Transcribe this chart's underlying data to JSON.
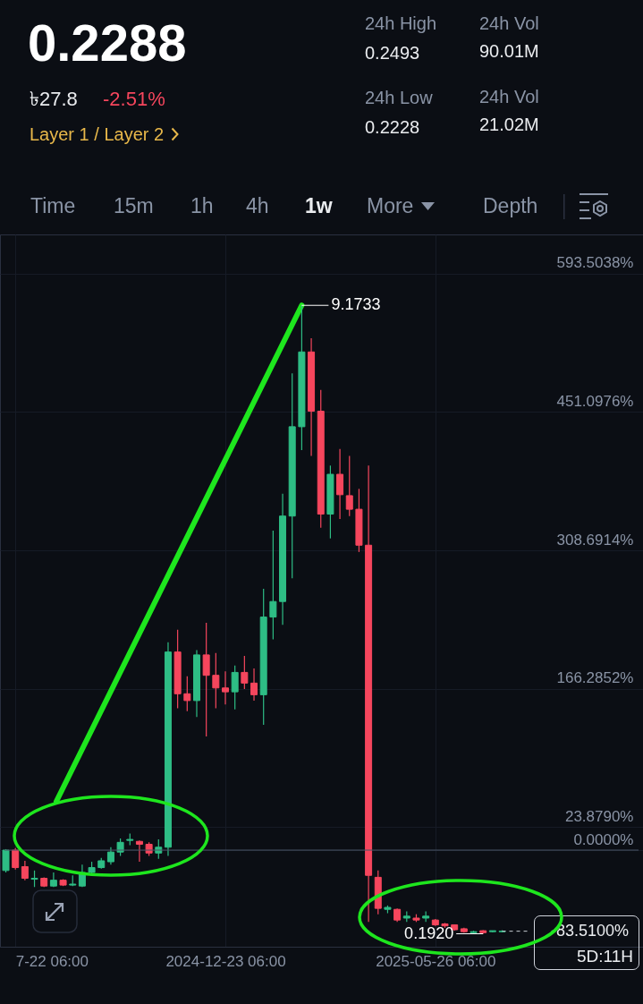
{
  "chart_data": {
    "type": "candlestick",
    "title": "0.2288",
    "x": [
      "2024-07-15",
      "2024-07-22",
      "2024-07-29",
      "2024-08-05",
      "2024-08-12",
      "2024-08-19",
      "2024-08-26",
      "2024-09-02",
      "2024-09-09",
      "2024-09-16",
      "2024-09-23",
      "2024-09-30",
      "2024-10-07",
      "2024-10-14",
      "2024-10-21",
      "2024-10-28",
      "2024-11-04",
      "2024-11-11",
      "2024-11-18",
      "2024-11-25",
      "2024-12-02",
      "2024-12-09",
      "2024-12-16",
      "2024-12-23",
      "2024-12-30",
      "2025-01-06",
      "2025-01-13",
      "2025-01-20",
      "2025-01-27",
      "2025-02-03",
      "2025-02-10",
      "2025-02-17",
      "2025-02-24",
      "2025-03-03",
      "2025-03-10",
      "2025-03-17",
      "2025-03-24",
      "2025-03-31",
      "2025-04-07",
      "2025-04-14",
      "2025-04-21",
      "2025-04-28",
      "2025-05-05",
      "2025-05-12",
      "2025-05-19",
      "2025-05-26",
      "2025-06-02",
      "2025-06-09",
      "2025-06-16",
      "2025-06-23",
      "2025-06-30",
      "2025-07-07",
      "2025-07-14"
    ],
    "ohlc": [
      [
        -21,
        1,
        -23,
        0
      ],
      [
        0,
        2,
        -20,
        -18
      ],
      [
        -17,
        -11,
        -31,
        -29
      ],
      [
        -30,
        -21,
        -38,
        -29
      ],
      [
        -29,
        -28,
        -38,
        -37
      ],
      [
        -37,
        -23,
        -38,
        -31
      ],
      [
        -31,
        -30,
        -37,
        -36
      ],
      [
        -36,
        -26,
        -37,
        -35
      ],
      [
        -37,
        -15,
        -38,
        -23
      ],
      [
        -23,
        -12,
        -25,
        -18
      ],
      [
        -18,
        -8,
        -19,
        -11
      ],
      [
        -12,
        3,
        -15,
        -2
      ],
      [
        -2,
        12,
        -6,
        8
      ],
      [
        10,
        17,
        5,
        11
      ],
      [
        9,
        10,
        -12,
        6
      ],
      [
        6,
        8,
        -6,
        -3
      ],
      [
        -3,
        11,
        -9,
        3
      ],
      [
        3,
        214,
        -6,
        204
      ],
      [
        204,
        227,
        146,
        161
      ],
      [
        161,
        179,
        143,
        154
      ],
      [
        154,
        206,
        137,
        201
      ],
      [
        201,
        234,
        117,
        180
      ],
      [
        180,
        203,
        146,
        167
      ],
      [
        167,
        184,
        150,
        163
      ],
      [
        163,
        190,
        145,
        183
      ],
      [
        183,
        200,
        166,
        172
      ],
      [
        172,
        187,
        154,
        160
      ],
      [
        160,
        269,
        129,
        240
      ],
      [
        240,
        329,
        217,
        256
      ],
      [
        256,
        367,
        232,
        344
      ],
      [
        344,
        491,
        280,
        436
      ],
      [
        436,
        561,
        412,
        513
      ],
      [
        513,
        527,
        406,
        452
      ],
      [
        452,
        474,
        332,
        346
      ],
      [
        346,
        396,
        321,
        387
      ],
      [
        387,
        413,
        341,
        366
      ],
      [
        365,
        406,
        344,
        351
      ],
      [
        351,
        372,
        307,
        314
      ],
      [
        314,
        396,
        -74,
        -26
      ],
      [
        -28,
        -21,
        -66,
        -60
      ],
      [
        -61,
        -57,
        -65,
        -59
      ],
      [
        -61,
        -60,
        -74,
        -72
      ],
      [
        -70,
        -63,
        -74,
        -68
      ],
      [
        -70,
        -66,
        -74,
        -72
      ],
      [
        -70,
        -63,
        -74,
        -68
      ],
      [
        -72,
        -71,
        -78,
        -77
      ],
      [
        -76,
        -75,
        -80,
        -78
      ],
      [
        -77,
        -77,
        -83,
        -82
      ],
      [
        -81,
        -80,
        -85,
        -84
      ],
      [
        -85,
        -83,
        -85.5,
        -84
      ],
      [
        -83,
        -82.5,
        -86.16,
        -85
      ],
      [
        -84,
        -82.8,
        -84.5,
        -83
      ],
      [
        -84,
        -82.5,
        -84.5,
        -83.51
      ]
    ],
    "colors": [
      "#2ebd85",
      "#f6465d",
      "#f6465d",
      "#2ebd85",
      "#f6465d",
      "#2ebd85",
      "#f6465d",
      "#2ebd85",
      "#2ebd85",
      "#2ebd85",
      "#2ebd85",
      "#2ebd85",
      "#2ebd85",
      "#2ebd85",
      "#f6465d",
      "#f6465d",
      "#2ebd85",
      "#2ebd85",
      "#f6465d",
      "#f6465d",
      "#2ebd85",
      "#f6465d",
      "#f6465d",
      "#f6465d",
      "#2ebd85",
      "#f6465d",
      "#f6465d",
      "#2ebd85",
      "#2ebd85",
      "#2ebd85",
      "#2ebd85",
      "#2ebd85",
      "#f6465d",
      "#f6465d",
      "#2ebd85",
      "#f6465d",
      "#f6465d",
      "#f6465d",
      "#f6465d",
      "#f6465d",
      "#2ebd85",
      "#f6465d",
      "#2ebd85",
      "#f6465d",
      "#2ebd85",
      "#f6465d",
      "#f6465d",
      "#f6465d",
      "#f6465d",
      "#2ebd85",
      "#f6465d",
      "#2ebd85",
      "#2ebd85"
    ],
    "xlim": [
      "2024-07-14",
      "2025-10-22"
    ],
    "xticks": [
      {
        "value": "2024-07-22",
        "label": "7-22 06:00"
      },
      {
        "value": "2024-12-23",
        "label": "2024-12-23 06:00"
      },
      {
        "value": "2025-05-26",
        "label": "2025-05-26 06:00"
      }
    ],
    "ylim": [
      -99.5,
      634
    ],
    "yticks": [
      {
        "value": 593.5038,
        "label": "593.5038%"
      },
      {
        "value": 451.0976,
        "label": "451.0976%"
      },
      {
        "value": 308.6914,
        "label": "308.6914%"
      },
      {
        "value": 166.2852,
        "label": "166.2852%"
      },
      {
        "value": 23.879,
        "label": "23.8790%"
      },
      {
        "value": 0,
        "label": "0.0000%"
      }
    ],
    "grid": true,
    "series": [
      {
        "type": "line",
        "color": "#1ee61e",
        "x": [
          "2024-08-21",
          "2025-02-17"
        ],
        "values": [
          50,
          561
        ]
      }
    ],
    "ref_lines": [
      {
        "axis": "y",
        "value": 0,
        "color": "#4a5366"
      },
      {
        "axis": "y",
        "value": -83.51,
        "label": "-83.5100%",
        "color": "#c8ccd4",
        "line_style": "dashed"
      }
    ],
    "annotations": [
      "৳27.8",
      "-2.51%",
      "Layer 1 / Layer 2",
      "24h High",
      "0.2493",
      "24h Low",
      "0.2228",
      "24h Vol",
      "90.01M",
      "24h Vol",
      "21.02M",
      "Time",
      "15m",
      "1h",
      "4h",
      "1w",
      "More",
      "Depth",
      "5D:11H",
      {
        "text": "9.1733",
        "x": "2025-02-17",
        "y": 561
      },
      {
        "text": "0.1920",
        "x": "2025-06-30",
        "y": -86.16
      }
    ]
  }
}
